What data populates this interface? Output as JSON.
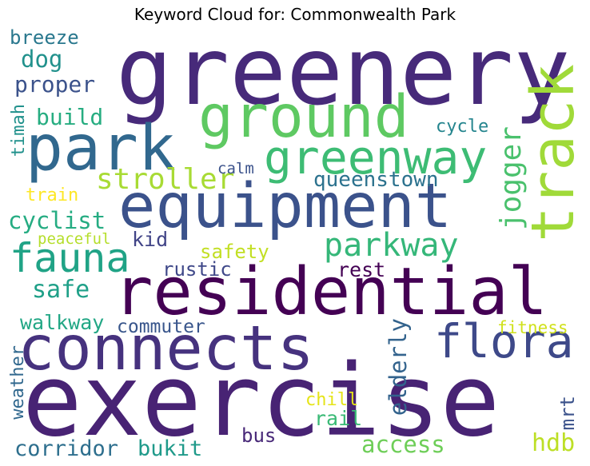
{
  "title": "Keyword Cloud for: Commonwealth Park",
  "words": [
    {
      "text": "greenery",
      "color": "#472a7a"
    },
    {
      "text": "exercise",
      "color": "#482374"
    },
    {
      "text": "residential",
      "color": "#440154"
    },
    {
      "text": "equipment",
      "color": "#3b528b"
    },
    {
      "text": "park",
      "color": "#31688e"
    },
    {
      "text": "connects",
      "color": "#46327e"
    },
    {
      "text": "ground",
      "color": "#5ec962"
    },
    {
      "text": "track",
      "color": "#a0da39"
    },
    {
      "text": "greenway",
      "color": "#3dbc74"
    },
    {
      "text": "fauna",
      "color": "#20a386"
    },
    {
      "text": "flora",
      "color": "#3e4989"
    },
    {
      "text": "parkway",
      "color": "#35b779"
    },
    {
      "text": "stroller",
      "color": "#a8db34"
    },
    {
      "text": "jogger",
      "color": "#4ac16d"
    },
    {
      "text": "queenstown",
      "color": "#2c728e"
    },
    {
      "text": "cyclist",
      "color": "#25ac82"
    },
    {
      "text": "proper",
      "color": "#3b528b"
    },
    {
      "text": "dog",
      "color": "#21918c"
    },
    {
      "text": "breeze",
      "color": "#2a788e"
    },
    {
      "text": "build",
      "color": "#27ad81"
    },
    {
      "text": "cycle",
      "color": "#25858e"
    },
    {
      "text": "kid",
      "color": "#414487"
    },
    {
      "text": "safety",
      "color": "#c2df23"
    },
    {
      "text": "rustic",
      "color": "#3f4889"
    },
    {
      "text": "rest",
      "color": "#440154"
    },
    {
      "text": "safe",
      "color": "#1fa088"
    },
    {
      "text": "walkway",
      "color": "#22a785"
    },
    {
      "text": "commuter",
      "color": "#39568c"
    },
    {
      "text": "elderly",
      "color": "#33638d"
    },
    {
      "text": "fitness",
      "color": "#d0e11c"
    },
    {
      "text": "weather",
      "color": "#31688e"
    },
    {
      "text": "chill",
      "color": "#e5e419"
    },
    {
      "text": "rail",
      "color": "#3aba76"
    },
    {
      "text": "bus",
      "color": "#482878"
    },
    {
      "text": "access",
      "color": "#6ece58"
    },
    {
      "text": "hdb",
      "color": "#bddf26"
    },
    {
      "text": "mrt",
      "color": "#3b528b"
    },
    {
      "text": "corridor",
      "color": "#2e6f8e"
    },
    {
      "text": "bukit",
      "color": "#1f9a8a"
    },
    {
      "text": "train",
      "color": "#fde725"
    },
    {
      "text": "peaceful",
      "color": "#b5de2b"
    },
    {
      "text": "calm",
      "color": "#3b528b"
    },
    {
      "text": "timah",
      "color": "#21918c"
    }
  ]
}
